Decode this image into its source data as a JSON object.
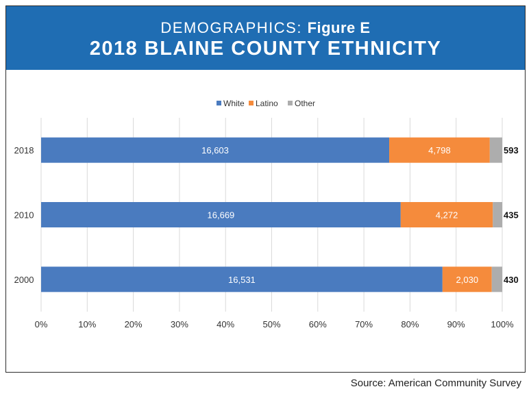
{
  "header": {
    "kicker": "DEMOGRAPHICS:",
    "figure": "Figure E",
    "title": "2018 BLAINE COUNTY ETHNICITY"
  },
  "source": "Source: American Community Survey",
  "colors": {
    "header_bg": "#1f6db3",
    "white_series": "#4a7bbf",
    "latino_series": "#f58b3c",
    "other_series": "#adadad"
  },
  "chart_data": {
    "type": "bar",
    "orientation": "horizontal",
    "stacked": "percent",
    "title": "2018 BLAINE COUNTY ETHNICITY",
    "categories": [
      "2018",
      "2010",
      "2000"
    ],
    "series": [
      {
        "name": "White",
        "values": [
          16603,
          16669,
          16531
        ],
        "labels": [
          "16,603",
          "16,669",
          "16,531"
        ],
        "color": "#4a7bbf",
        "label_color": "#ffffff"
      },
      {
        "name": "Latino",
        "values": [
          4798,
          4272,
          2030
        ],
        "labels": [
          "4,798",
          "4,272",
          "2,030"
        ],
        "color": "#f58b3c",
        "label_color": "#ffffff"
      },
      {
        "name": "Other",
        "values": [
          593,
          435,
          430
        ],
        "labels": [
          "593",
          "435",
          "430"
        ],
        "color": "#adadad",
        "label_color": "#111111"
      }
    ],
    "x_ticks": [
      "0%",
      "10%",
      "20%",
      "30%",
      "40%",
      "50%",
      "60%",
      "70%",
      "80%",
      "90%",
      "100%"
    ],
    "xlim": [
      0,
      100
    ],
    "xlabel": "",
    "ylabel": "",
    "legend_position": "top-center",
    "grid": true
  }
}
